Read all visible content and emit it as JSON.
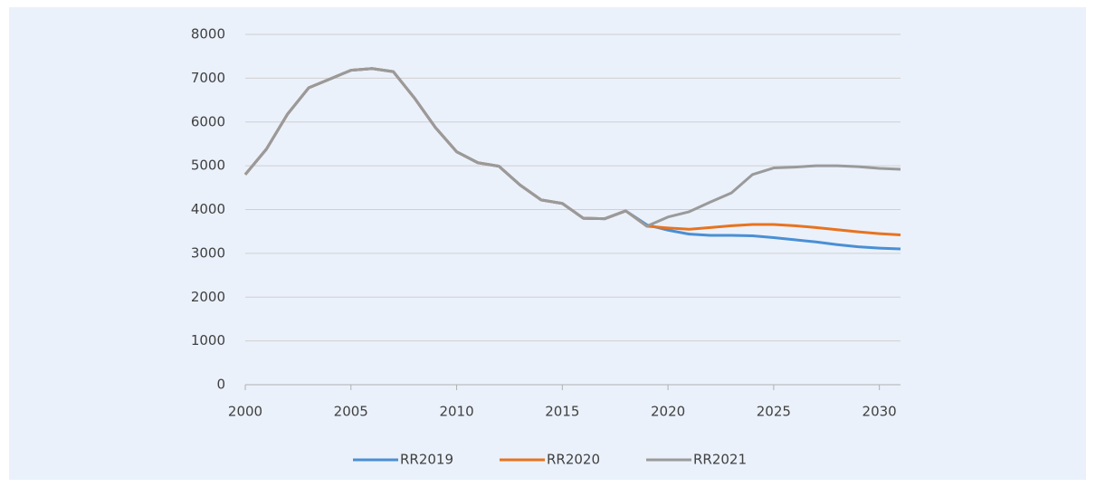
{
  "chart_data": {
    "type": "line",
    "x": [
      2000,
      2001,
      2002,
      2003,
      2004,
      2005,
      2006,
      2007,
      2008,
      2009,
      2010,
      2011,
      2012,
      2013,
      2014,
      2015,
      2016,
      2017,
      2018,
      2019,
      2020,
      2021,
      2022,
      2023,
      2024,
      2025,
      2026,
      2027,
      2028,
      2029,
      2030,
      2031
    ],
    "series": [
      {
        "name": "RR2019",
        "color": "#4a8fd4",
        "values": [
          4800,
          5380,
          6180,
          6780,
          6980,
          7180,
          7220,
          7150,
          6550,
          5870,
          5320,
          5070,
          4990,
          4560,
          4220,
          4140,
          3800,
          3790,
          3970,
          3650,
          3530,
          3440,
          3410,
          3410,
          3400,
          3360,
          3310,
          3260,
          3200,
          3150,
          3120,
          3100
        ]
      },
      {
        "name": "RR2020",
        "color": "#e8731f",
        "values": [
          4800,
          5380,
          6180,
          6780,
          6980,
          7180,
          7220,
          7150,
          6550,
          5870,
          5320,
          5070,
          4990,
          4560,
          4220,
          4140,
          3800,
          3790,
          3970,
          3620,
          3580,
          3550,
          3590,
          3630,
          3660,
          3660,
          3630,
          3590,
          3540,
          3490,
          3450,
          3420
        ]
      },
      {
        "name": "RR2021",
        "color": "#9a9a9a",
        "values": [
          4800,
          5380,
          6180,
          6780,
          6980,
          7180,
          7220,
          7150,
          6550,
          5870,
          5320,
          5070,
          4990,
          4560,
          4220,
          4140,
          3800,
          3790,
          3970,
          3620,
          3830,
          3950,
          4170,
          4380,
          4800,
          4950,
          4970,
          5000,
          5000,
          4980,
          4940,
          4920
        ]
      }
    ],
    "xlim": [
      2000,
      2031
    ],
    "xticks": [
      2000,
      2005,
      2010,
      2015,
      2020,
      2025,
      2030
    ],
    "ylim": [
      0,
      8000
    ],
    "yticks": [
      0,
      1000,
      2000,
      3000,
      4000,
      5000,
      6000,
      7000,
      8000
    ],
    "grid": true,
    "legend": "bottom"
  }
}
